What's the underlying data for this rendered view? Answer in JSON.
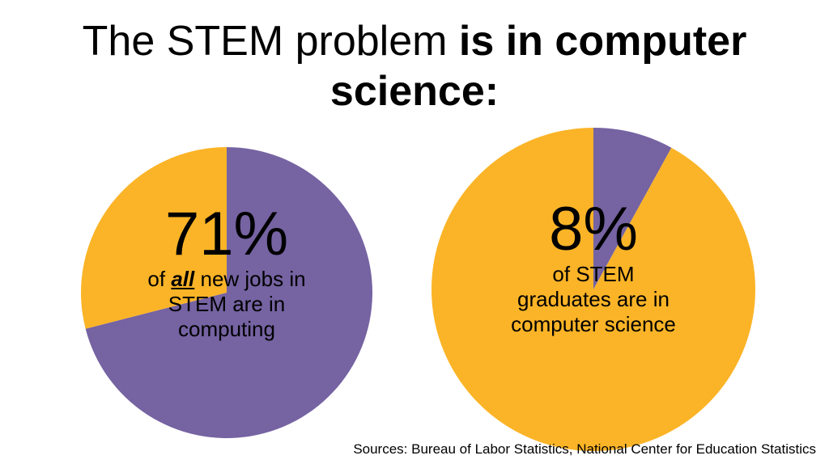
{
  "title": {
    "part1": "The STEM problem ",
    "part2": "is in computer science:"
  },
  "colors": {
    "purple": "#7563A2",
    "gold": "#FBB427"
  },
  "chart_data": [
    {
      "type": "pie",
      "slices": [
        {
          "value": 71,
          "color": "#7563A2"
        },
        {
          "value": 29,
          "color": "#FBB427"
        }
      ],
      "label": {
        "value": "71%",
        "desc_pre": "of ",
        "desc_em": "all",
        "desc_post": " new jobs in STEM are in computing"
      }
    },
    {
      "type": "pie",
      "slices": [
        {
          "value": 8,
          "color": "#7563A2"
        },
        {
          "value": 92,
          "color": "#FBB427"
        }
      ],
      "label": {
        "value": "8%",
        "desc": "of STEM graduates are in computer science"
      }
    }
  ],
  "sources": "Sources: Bureau of Labor Statistics, National Center for Education Statistics"
}
